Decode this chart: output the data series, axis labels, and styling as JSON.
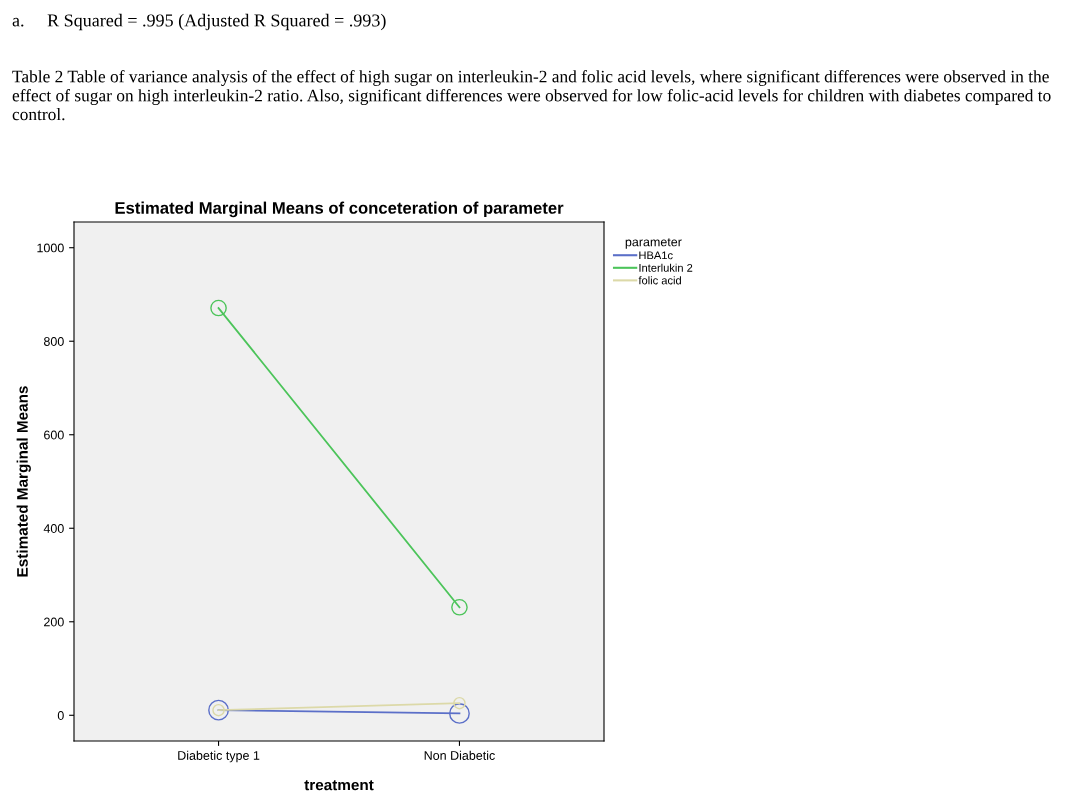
{
  "chart_data": {
    "type": "line",
    "title": "Estimated Marginal Means of conceteration of parameter",
    "xlabel": "treatment",
    "ylabel": "Estimated Marginal Means",
    "legend_title": "parameter",
    "categories": [
      "Diabetic type 1",
      "Non Diabetic"
    ],
    "series": [
      {
        "name": "HBA1c",
        "color": "#5b6fc8",
        "values": [
          11,
          4
        ]
      },
      {
        "name": "Interlukin 2",
        "color": "#4cc45a",
        "values": [
          871,
          231
        ]
      },
      {
        "name": "folic acid",
        "color": "#dcd9a8",
        "values": [
          11,
          26
        ]
      }
    ],
    "ylim": [
      -55,
      1055
    ],
    "yticks": [
      0,
      200,
      400,
      600,
      800,
      1000
    ],
    "marker": "circle",
    "line_style": "solid",
    "grid": false,
    "legend": "top right",
    "annotations": [
      "a.     R Squared = .995 (Adjusted R Squared = .993)",
      "Table 2 Table of variance analysis of the effect of high sugar on interleukin-2 and folic acid levels, where significant differences were observed in the effect of sugar on high interleukin-2 ratio. Also, significant differences were observed for low folic-acid levels for children with diabetes compared to control."
    ]
  }
}
